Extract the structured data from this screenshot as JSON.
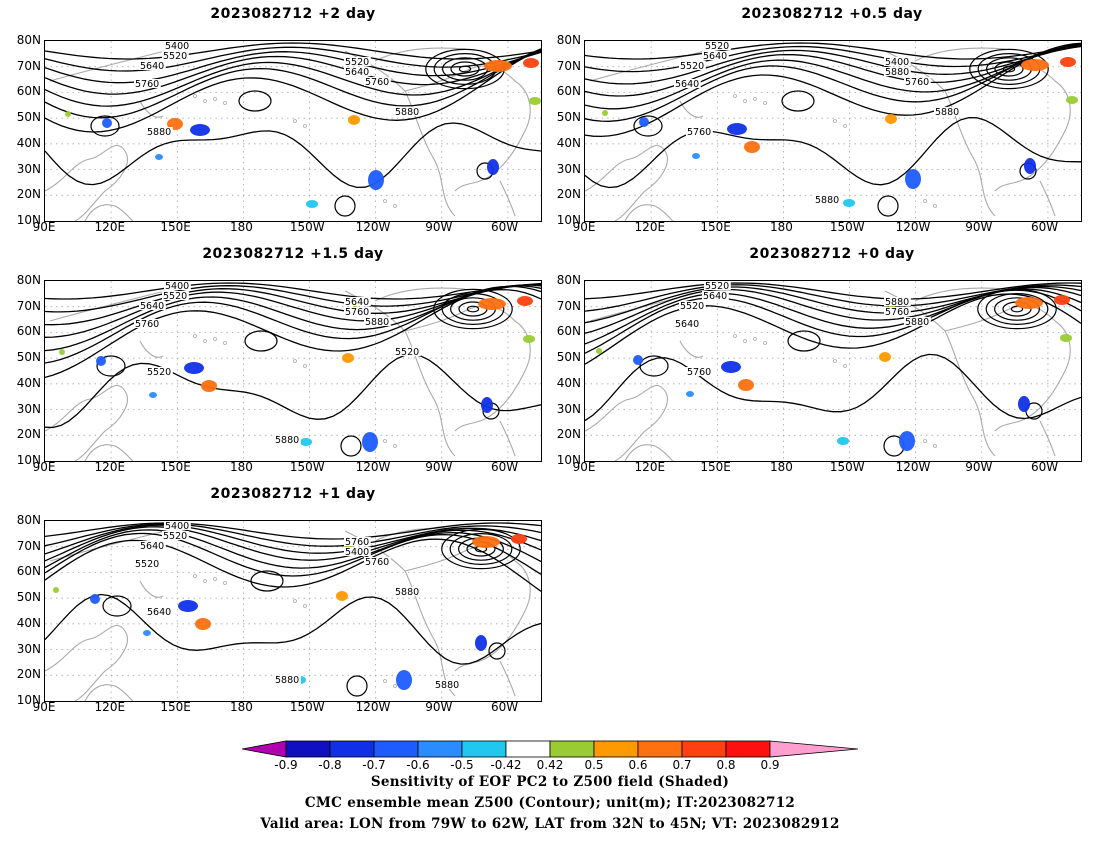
{
  "panels": [
    {
      "id": "p1",
      "title": "2023082712 +2 day",
      "contour_labels": [
        "5400",
        "5520",
        "5640",
        "5760",
        "5880",
        "5520",
        "5640",
        "5760",
        "5880"
      ]
    },
    {
      "id": "p2",
      "title": "2023082712 +0.5 day",
      "contour_labels": [
        "5520",
        "5640",
        "5520",
        "5640",
        "5760",
        "5400",
        "5880",
        "5760",
        "5880",
        "5880"
      ]
    },
    {
      "id": "p3",
      "title": "2023082712 +1.5 day",
      "contour_labels": [
        "5400",
        "5520",
        "5640",
        "5760",
        "5520",
        "5640",
        "5760",
        "5880",
        "5520",
        "5880"
      ]
    },
    {
      "id": "p4",
      "title": "2023082712 +0 day",
      "contour_labels": [
        "5520",
        "5640",
        "5520",
        "5640",
        "5760",
        "5880",
        "5760",
        "5880"
      ]
    },
    {
      "id": "p5",
      "title": "2023082712 +1 day",
      "contour_labels": [
        "5400",
        "5520",
        "5640",
        "5520",
        "5640",
        "5760",
        "5400",
        "5760",
        "5880",
        "5880",
        "5880"
      ]
    }
  ],
  "axes": {
    "lat_ticks": [
      "80N",
      "70N",
      "60N",
      "50N",
      "40N",
      "30N",
      "20N",
      "10N"
    ],
    "lon_ticks": [
      "90E",
      "120E",
      "150E",
      "180",
      "150W",
      "120W",
      "90W",
      "60W"
    ]
  },
  "colorbar": {
    "labels": [
      "-0.9",
      "-0.8",
      "-0.7",
      "-0.6",
      "-0.5",
      "-0.42",
      "0.42",
      "0.5",
      "0.6",
      "0.7",
      "0.8",
      "0.9"
    ],
    "colors": [
      "#b000b0",
      "#1010c0",
      "#1030e8",
      "#1e5cff",
      "#2a8cff",
      "#20c8f0",
      "#ffffff",
      "#99cc33",
      "#ff9900",
      "#ff7010",
      "#ff4010",
      "#ff1010",
      "#ff9fcf"
    ]
  },
  "captions": {
    "line1": "Sensitivity of EOF PC2 to Z500 field (Shaded)",
    "line2": "CMC ensemble mean Z500 (Contour); unit(m); IT:2023082712",
    "line3": "Valid area: LON from 79W to 62W, LAT from 32N to 45N; VT: 2023082912"
  }
}
